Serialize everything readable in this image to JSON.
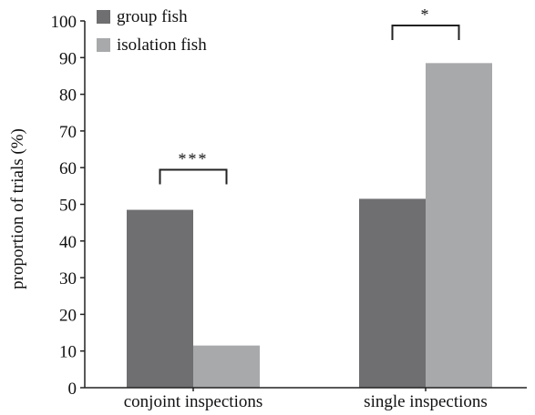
{
  "chart_data": {
    "type": "bar",
    "categories": [
      "conjoint inspections",
      "single inspections"
    ],
    "series": [
      {
        "name": "group fish",
        "values": [
          48.5,
          51.5
        ],
        "color": "#6f6f71"
      },
      {
        "name": "isolation fish",
        "values": [
          11.5,
          88.5
        ],
        "color": "#a8a9ab"
      }
    ],
    "title": "",
    "xlabel": "",
    "ylabel": "proportion of trials (%)",
    "ylim": [
      0,
      100
    ],
    "yticks": [
      0,
      10,
      20,
      30,
      40,
      50,
      60,
      70,
      80,
      90,
      100
    ],
    "grid": false,
    "legend_position": "top-left",
    "significance": [
      {
        "category": "conjoint inspections",
        "label": "***"
      },
      {
        "category": "single inspections",
        "label": "*"
      }
    ]
  }
}
